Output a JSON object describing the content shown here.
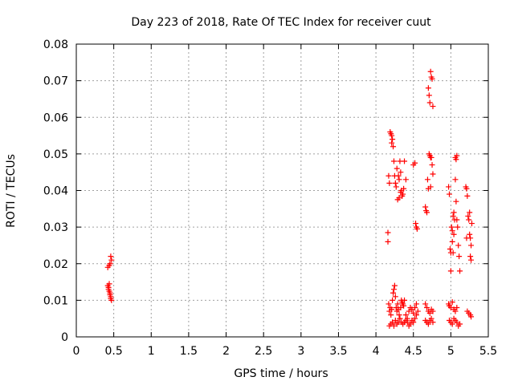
{
  "chart_data": {
    "type": "scatter",
    "title": "Day 223 of 2018, Rate Of TEC Index for receiver cuut",
    "xlabel": "GPS time / hours",
    "ylabel": "ROTI / TECUs",
    "xlim": [
      0,
      5.5
    ],
    "ylim": [
      0,
      0.08
    ],
    "xticks": [
      0,
      0.5,
      1,
      1.5,
      2,
      2.5,
      3,
      3.5,
      4,
      4.5,
      5,
      5.5
    ],
    "xtick_labels": [
      "0",
      "0.5",
      "1",
      "1.5",
      "2",
      "2.5",
      "3",
      "3.5",
      "4",
      "4.5",
      "5",
      "5.5"
    ],
    "yticks": [
      0,
      0.01,
      0.02,
      0.03,
      0.04,
      0.05,
      0.06,
      0.07,
      0.08
    ],
    "ytick_labels": [
      "0",
      "0.01",
      "0.02",
      "0.03",
      "0.04",
      "0.05",
      "0.06",
      "0.07",
      "0.08"
    ],
    "grid": true,
    "marker": "+",
    "color": "#ff0000",
    "series": [
      {
        "name": "ROTI",
        "points": [
          [
            0.42,
            0.019
          ],
          [
            0.44,
            0.0195
          ],
          [
            0.45,
            0.02
          ],
          [
            0.46,
            0.022
          ],
          [
            0.47,
            0.021
          ],
          [
            0.42,
            0.014
          ],
          [
            0.43,
            0.0135
          ],
          [
            0.43,
            0.013
          ],
          [
            0.44,
            0.0125
          ],
          [
            0.45,
            0.012
          ],
          [
            0.45,
            0.0115
          ],
          [
            0.46,
            0.011
          ],
          [
            0.46,
            0.0105
          ],
          [
            0.47,
            0.01
          ],
          [
            0.44,
            0.0145
          ],
          [
            4.16,
            0.0285
          ],
          [
            4.16,
            0.026
          ],
          [
            4.17,
            0.044
          ],
          [
            4.18,
            0.042
          ],
          [
            4.19,
            0.056
          ],
          [
            4.2,
            0.0555
          ],
          [
            4.21,
            0.055
          ],
          [
            4.22,
            0.054
          ],
          [
            4.23,
            0.052
          ],
          [
            4.21,
            0.053
          ],
          [
            4.24,
            0.048
          ],
          [
            4.25,
            0.044
          ],
          [
            4.26,
            0.042
          ],
          [
            4.27,
            0.041
          ],
          [
            4.28,
            0.046
          ],
          [
            4.3,
            0.044
          ],
          [
            4.31,
            0.043
          ],
          [
            4.32,
            0.048
          ],
          [
            4.33,
            0.045
          ],
          [
            4.34,
            0.04
          ],
          [
            4.35,
            0.0385
          ],
          [
            4.36,
            0.039
          ],
          [
            4.37,
            0.0405
          ],
          [
            4.38,
            0.048
          ],
          [
            4.4,
            0.043
          ],
          [
            4.29,
            0.0375
          ],
          [
            4.31,
            0.038
          ],
          [
            4.33,
            0.0395
          ],
          [
            4.17,
            0.009
          ],
          [
            4.18,
            0.007
          ],
          [
            4.19,
            0.008
          ],
          [
            4.2,
            0.006
          ],
          [
            4.21,
            0.0075
          ],
          [
            4.22,
            0.01
          ],
          [
            4.23,
            0.012
          ],
          [
            4.24,
            0.013
          ],
          [
            4.25,
            0.014
          ],
          [
            4.26,
            0.011
          ],
          [
            4.27,
            0.008
          ],
          [
            4.28,
            0.007
          ],
          [
            4.29,
            0.009
          ],
          [
            4.3,
            0.0075
          ],
          [
            4.31,
            0.006
          ],
          [
            4.32,
            0.005
          ],
          [
            4.33,
            0.008
          ],
          [
            4.34,
            0.01
          ],
          [
            4.35,
            0.0095
          ],
          [
            4.36,
            0.009
          ],
          [
            4.37,
            0.0085
          ],
          [
            4.38,
            0.01
          ],
          [
            4.4,
            0.006
          ],
          [
            4.42,
            0.005
          ],
          [
            4.44,
            0.007
          ],
          [
            4.46,
            0.008
          ],
          [
            4.48,
            0.0075
          ],
          [
            4.5,
            0.0065
          ],
          [
            4.52,
            0.008
          ],
          [
            4.54,
            0.009
          ],
          [
            4.18,
            0.003
          ],
          [
            4.2,
            0.0035
          ],
          [
            4.22,
            0.004
          ],
          [
            4.24,
            0.003
          ],
          [
            4.26,
            0.0045
          ],
          [
            4.28,
            0.0035
          ],
          [
            4.3,
            0.004
          ],
          [
            4.32,
            0.005
          ],
          [
            4.34,
            0.004
          ],
          [
            4.36,
            0.0035
          ],
          [
            4.38,
            0.004
          ],
          [
            4.4,
            0.0045
          ],
          [
            4.42,
            0.004
          ],
          [
            4.44,
            0.003
          ],
          [
            4.46,
            0.0035
          ],
          [
            4.48,
            0.0045
          ],
          [
            4.5,
            0.004
          ],
          [
            4.52,
            0.005
          ],
          [
            4.54,
            0.006
          ],
          [
            4.56,
            0.007
          ],
          [
            4.5,
            0.047
          ],
          [
            4.52,
            0.0475
          ],
          [
            4.53,
            0.031
          ],
          [
            4.54,
            0.03
          ],
          [
            4.55,
            0.0295
          ],
          [
            4.66,
            0.0355
          ],
          [
            4.67,
            0.0345
          ],
          [
            4.68,
            0.034
          ],
          [
            4.69,
            0.043
          ],
          [
            4.7,
            0.0405
          ],
          [
            4.71,
            0.05
          ],
          [
            4.72,
            0.0495
          ],
          [
            4.73,
            0.049
          ],
          [
            4.74,
            0.049
          ],
          [
            4.75,
            0.047
          ],
          [
            4.76,
            0.0445
          ],
          [
            4.7,
            0.068
          ],
          [
            4.71,
            0.066
          ],
          [
            4.72,
            0.064
          ],
          [
            4.73,
            0.0725
          ],
          [
            4.74,
            0.071
          ],
          [
            4.75,
            0.0705
          ],
          [
            4.76,
            0.063
          ],
          [
            4.73,
            0.041
          ],
          [
            4.66,
            0.009
          ],
          [
            4.68,
            0.008
          ],
          [
            4.7,
            0.007
          ],
          [
            4.72,
            0.0065
          ],
          [
            4.74,
            0.0075
          ],
          [
            4.76,
            0.007
          ],
          [
            4.66,
            0.0045
          ],
          [
            4.68,
            0.004
          ],
          [
            4.7,
            0.0035
          ],
          [
            4.72,
            0.0045
          ],
          [
            4.74,
            0.005
          ],
          [
            4.76,
            0.004
          ],
          [
            4.97,
            0.041
          ],
          [
            4.98,
            0.039
          ],
          [
            4.99,
            0.024
          ],
          [
            5.0,
            0.023
          ],
          [
            5.0,
            0.018
          ],
          [
            5.01,
            0.03
          ],
          [
            5.02,
            0.029
          ],
          [
            5.03,
            0.033
          ],
          [
            5.04,
            0.034
          ],
          [
            5.05,
            0.032
          ],
          [
            5.06,
            0.049
          ],
          [
            5.07,
            0.0485
          ],
          [
            5.08,
            0.0495
          ],
          [
            5.06,
            0.043
          ],
          [
            5.07,
            0.037
          ],
          [
            5.08,
            0.032
          ],
          [
            5.09,
            0.03
          ],
          [
            5.1,
            0.025
          ],
          [
            5.11,
            0.022
          ],
          [
            5.12,
            0.018
          ],
          [
            5.02,
            0.026
          ],
          [
            5.03,
            0.023
          ],
          [
            5.04,
            0.028
          ],
          [
            5.2,
            0.041
          ],
          [
            5.21,
            0.0405
          ],
          [
            5.22,
            0.0385
          ],
          [
            5.23,
            0.033
          ],
          [
            5.24,
            0.032
          ],
          [
            5.25,
            0.028
          ],
          [
            5.26,
            0.027
          ],
          [
            5.27,
            0.025
          ],
          [
            5.26,
            0.022
          ],
          [
            5.27,
            0.021
          ],
          [
            5.28,
            0.031
          ],
          [
            5.25,
            0.034
          ],
          [
            5.21,
            0.027
          ],
          [
            4.97,
            0.009
          ],
          [
            4.98,
            0.0085
          ],
          [
            5.0,
            0.008
          ],
          [
            5.02,
            0.0095
          ],
          [
            5.04,
            0.0075
          ],
          [
            5.06,
            0.007
          ],
          [
            5.08,
            0.008
          ],
          [
            4.98,
            0.0045
          ],
          [
            5.0,
            0.004
          ],
          [
            5.02,
            0.0035
          ],
          [
            5.04,
            0.005
          ],
          [
            5.06,
            0.0045
          ],
          [
            5.08,
            0.004
          ],
          [
            5.1,
            0.003
          ],
          [
            5.12,
            0.0035
          ],
          [
            5.22,
            0.007
          ],
          [
            5.24,
            0.0065
          ],
          [
            5.26,
            0.006
          ],
          [
            5.27,
            0.0055
          ]
        ]
      }
    ]
  }
}
